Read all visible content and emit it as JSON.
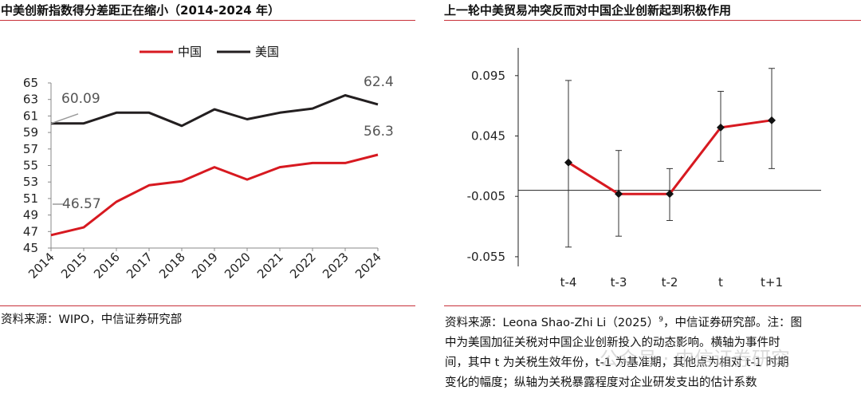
{
  "left_panel": {
    "title": "中美创新指数得分差距正在缩小（2014-2024 年）",
    "source": "资料来源：WIPO，中信证券研究部"
  },
  "right_panel": {
    "title": "上一轮中美贸易冲突反而对中国企业创新起到积极作用",
    "source_line1_a": "资料来源：Leona Shao-Zhi Li（2025）",
    "source_line1_sup": "9",
    "source_line1_b": "，中信证券研究部。注：图",
    "source_line2": "中为美国加征关税对中国企业创新投入的动态影响。横轴为事件时",
    "source_line3": "间，其中 t 为关税生效年份，t-1 为基准期，其他点为相对 t-1 时期",
    "source_line4": "变化的幅度；纵轴为关税暴露程度对企业研发支出的估计系数"
  },
  "watermark": "公众号 · 中信证券研究",
  "colors": {
    "china": "#d71920",
    "usa": "#231f20",
    "rule": "#c8323a",
    "annot": "#9a9a9a"
  },
  "chart_data": [
    {
      "type": "line",
      "categories": [
        "2014",
        "2015",
        "2016",
        "2017",
        "2018",
        "2019",
        "2020",
        "2021",
        "2022",
        "2023",
        "2024"
      ],
      "series": [
        {
          "name": "中国",
          "values": [
            46.57,
            47.5,
            50.6,
            52.6,
            53.1,
            54.8,
            53.3,
            54.8,
            55.3,
            55.3,
            56.3
          ]
        },
        {
          "name": "美国",
          "values": [
            60.09,
            60.1,
            61.4,
            61.4,
            59.8,
            61.8,
            60.6,
            61.4,
            61.9,
            63.5,
            62.4
          ]
        }
      ],
      "annotations": [
        "60.09",
        "62.4",
        "46.57",
        "56.3"
      ],
      "ylim": [
        45,
        65
      ],
      "yticks": [
        "45",
        "47",
        "49",
        "51",
        "53",
        "55",
        "57",
        "59",
        "61",
        "63",
        "65"
      ],
      "legend": "top-center",
      "grid": false
    },
    {
      "type": "line",
      "categories": [
        "t-4",
        "t-3",
        "t-2",
        "t",
        "t+1"
      ],
      "series": [
        {
          "values": [
            0.023,
            -0.003,
            -0.003,
            0.052,
            0.058
          ],
          "ci_lower": [
            -0.047,
            -0.038,
            -0.025,
            0.024,
            0.018
          ],
          "ci_upper": [
            0.091,
            0.033,
            0.018,
            0.082,
            0.101
          ]
        }
      ],
      "ylim": [
        -0.063,
        0.118
      ],
      "yticks": [
        "-0.055",
        "-0.005",
        "0.045",
        "0.095"
      ],
      "grid": false
    }
  ]
}
